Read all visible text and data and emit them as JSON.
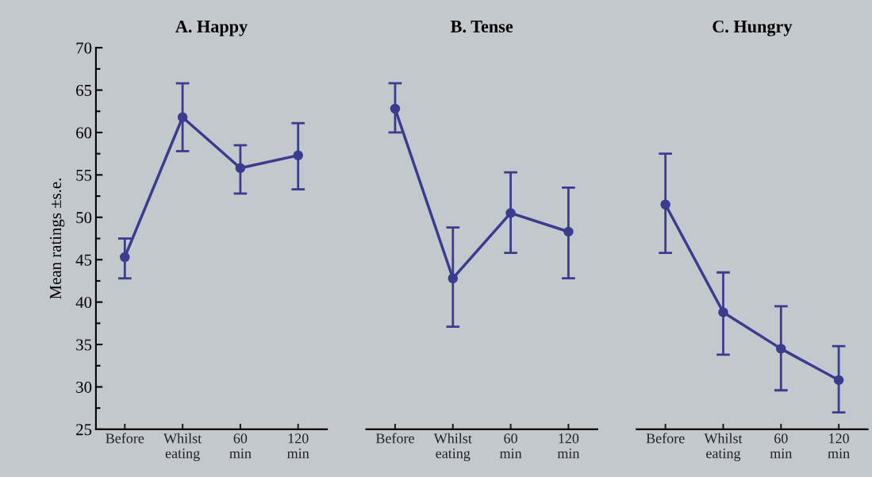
{
  "chart_data": [
    {
      "type": "line",
      "title": "A. Happy",
      "ylabel": "Mean ratings ±s.e.",
      "categories": [
        "Before",
        "Whilst\neating",
        "60\nmin",
        "120\nmin"
      ],
      "series": [
        {
          "color": "#3b3b8f",
          "values": [
            45.3,
            61.8,
            55.8,
            57.3
          ],
          "errors": [
            [
              42.8,
              47.5
            ],
            [
              57.8,
              65.8
            ],
            [
              52.8,
              58.5
            ],
            [
              53.3,
              61.1
            ]
          ]
        }
      ],
      "ylim": [
        25,
        70
      ],
      "yticks": [
        25,
        30,
        35,
        40,
        45,
        50,
        55,
        60,
        65,
        70
      ],
      "marker": "circle",
      "line_style": "solid",
      "grid": false,
      "legend": false
    },
    {
      "type": "line",
      "title": "B. Tense",
      "categories": [
        "Before",
        "Whilst\neating",
        "60\nmin",
        "120\nmin"
      ],
      "series": [
        {
          "color": "#3b3b8f",
          "values": [
            62.8,
            42.8,
            50.5,
            48.3
          ],
          "errors": [
            [
              60.0,
              65.8
            ],
            [
              37.1,
              48.8
            ],
            [
              45.8,
              55.3
            ],
            [
              42.8,
              53.5
            ]
          ]
        }
      ],
      "ylim": [
        25,
        70
      ],
      "tick_labels": "x",
      "marker": "circle",
      "line_style": "solid",
      "grid": false,
      "legend": false
    },
    {
      "type": "line",
      "title": "C. Hungry",
      "categories": [
        "Before",
        "Whilst\neating",
        "60\nmin",
        "120\nmin"
      ],
      "series": [
        {
          "color": "#3b3b8f",
          "values": [
            51.5,
            38.8,
            34.5,
            30.8
          ],
          "errors": [
            [
              45.8,
              57.5
            ],
            [
              33.8,
              43.5
            ],
            [
              29.6,
              39.5
            ],
            [
              27.0,
              34.8
            ]
          ]
        }
      ],
      "ylim": [
        25,
        70
      ],
      "tick_labels": "x",
      "marker": "circle",
      "line_style": "solid",
      "grid": false,
      "legend": false
    }
  ]
}
